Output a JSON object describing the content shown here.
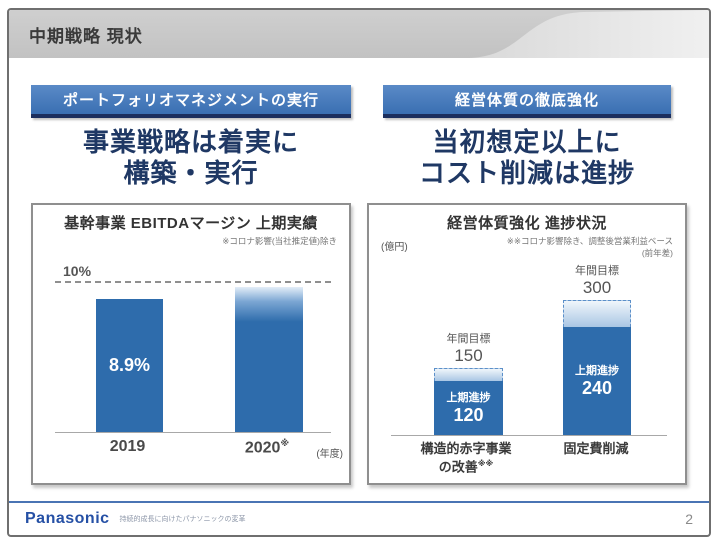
{
  "header": {
    "title": "中期戦略 現状"
  },
  "left": {
    "banner": "ポートフォリオマネジメントの実行",
    "headline_line1": "事業戦略は着実に",
    "headline_line2": "構築・実行",
    "box_title": "基幹事業 EBITDAマージン 上期実績",
    "note": "※コロナ影響(当社推定値)除き",
    "target_label": "10%",
    "bar1_value_label": "8.9%",
    "year1": "2019",
    "year2": "2020",
    "year2_sup": "※",
    "axis_unit": "(年度)"
  },
  "right": {
    "banner": "経営体質の徹底強化",
    "headline_line1": "当初想定以上に",
    "headline_line2": "コスト削減は進捗",
    "box_title": "経営体質強化 進捗状況",
    "unit": "(億円)",
    "note_line1": "※※コロナ影響除き、調整後営業利益ベース",
    "note_line2": "(前年差)",
    "bars": [
      {
        "target_label": "年間目標",
        "target": "150",
        "progress_label": "上期進捗",
        "progress": "120",
        "cat_line1": "構造的赤字事業",
        "cat_line2": "の改善",
        "cat_sup": "※※"
      },
      {
        "target_label": "年間目標",
        "target": "300",
        "progress_label": "上期進捗",
        "progress": "240",
        "cat_line1": "固定費削減",
        "cat_line2": "",
        "cat_sup": ""
      }
    ]
  },
  "footer": {
    "logo": "Panasonic",
    "tagline": "持続的成長に向けたパナソニックの変革",
    "page_number": "2"
  },
  "colors": {
    "bar_blue": "#2e6cac",
    "banner_blue": "#3a6fb2",
    "banner_shadow_navy": "#1b2e5e",
    "headline_navy": "#1f3864",
    "separator_blue": "#4a74b4",
    "logo_blue": "#2550a5",
    "header_gray": "#c6c6c6"
  },
  "chart_data": [
    {
      "type": "bar",
      "title": "基幹事業 EBITDAマージン 上期実績",
      "note": "※コロナ影響(当社推定値)除き",
      "categories": [
        "2019",
        "2020※"
      ],
      "values": [
        8.9,
        9.7
      ],
      "value_labels": [
        "8.9%",
        ""
      ],
      "reference_line": {
        "value": 10,
        "label": "10%"
      },
      "xlabel": "(年度)",
      "ylabel": "EBITDAマージン",
      "ylim": [
        0,
        10.5
      ],
      "grid": false,
      "annotation": "2020 bar is unlabeled, drawn with a faded gradient top approaching the 10% dashed target line (estimated ~9.7%)"
    },
    {
      "type": "bar",
      "title": "経営体質強化 進捗状況",
      "unit": "(億円)",
      "note": "※※コロナ影響除き、調整後営業利益ベース(前年差)",
      "categories": [
        "構造的赤字事業の改善※※",
        "固定費削減"
      ],
      "series": [
        {
          "name": "上期進捗",
          "values": [
            120,
            240
          ]
        },
        {
          "name": "年間目標",
          "values": [
            150,
            300
          ]
        }
      ],
      "ylim": [
        0,
        330
      ],
      "grid": false,
      "annotation": "Each bar shows solid 上期進捗 progress with a dashed light-blue cap up to the 年間目標 annual target"
    }
  ]
}
